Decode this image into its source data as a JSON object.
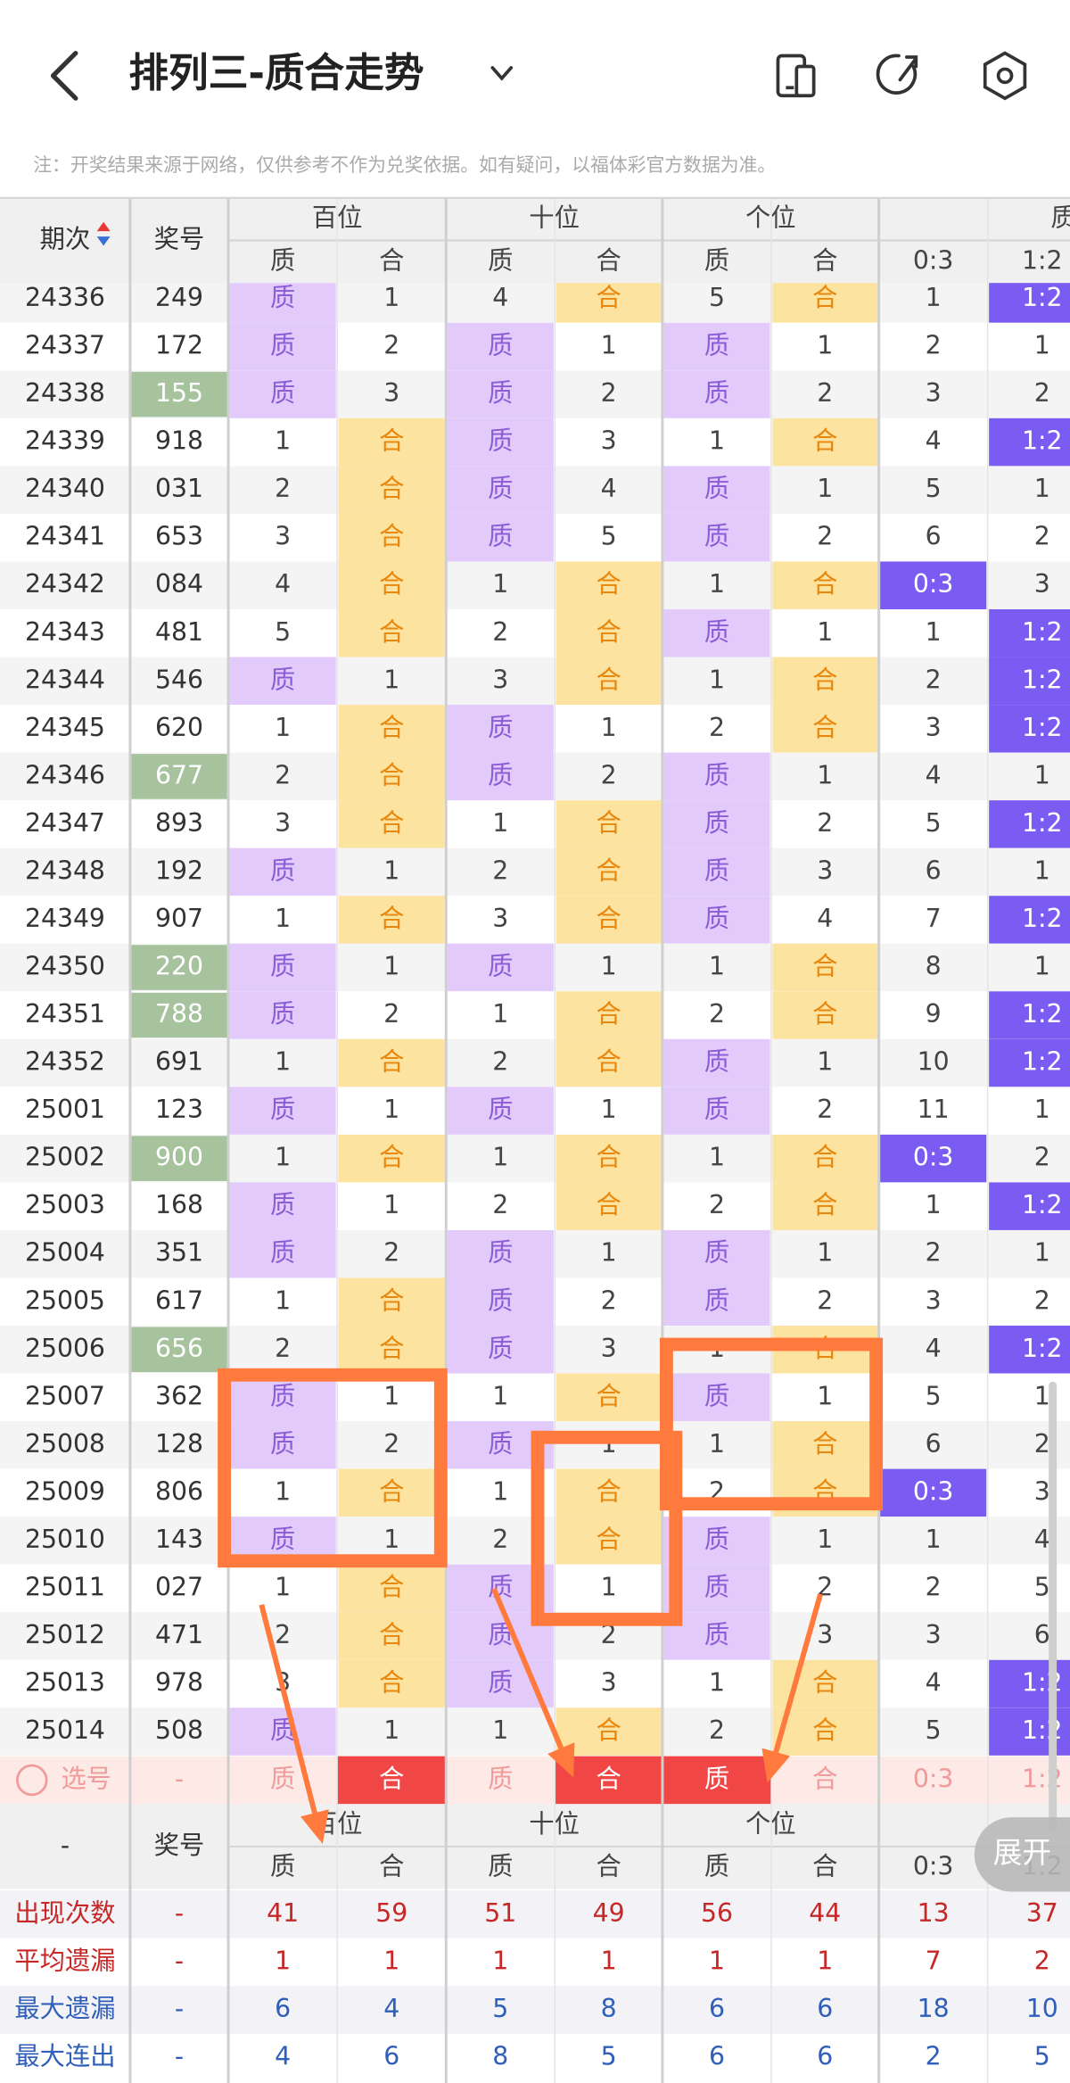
{
  "header": {
    "title": "排列三-质合走势"
  },
  "note": "注：开奖结果来源于网络，仅供参考不作为兑奖依据。如有疑问，以福体彩官方数据为准。",
  "table": {
    "columns": {
      "period": "期次",
      "number": "奖号"
    },
    "groups": [
      "百位",
      "十位",
      "个位",
      "质"
    ],
    "subheaders": [
      "质",
      "合",
      "质",
      "合",
      "质",
      "合",
      "0:3",
      "1:2"
    ],
    "rows": [
      [
        "24336",
        "249",
        "质",
        "1",
        "4",
        "合",
        "5",
        "合",
        "1",
        "1:2"
      ],
      [
        "24337",
        "172",
        "质",
        "2",
        "质",
        "1",
        "质",
        "1",
        "2",
        "1"
      ],
      [
        "24338",
        "155",
        "质",
        "3",
        "质",
        "2",
        "质",
        "2",
        "3",
        "2"
      ],
      [
        "24339",
        "918",
        "1",
        "合",
        "质",
        "3",
        "1",
        "合",
        "4",
        "1:2"
      ],
      [
        "24340",
        "031",
        "2",
        "合",
        "质",
        "4",
        "质",
        "1",
        "5",
        "1"
      ],
      [
        "24341",
        "653",
        "3",
        "合",
        "质",
        "5",
        "质",
        "2",
        "6",
        "2"
      ],
      [
        "24342",
        "084",
        "4",
        "合",
        "1",
        "合",
        "1",
        "合",
        "0:3",
        "3"
      ],
      [
        "24343",
        "481",
        "5",
        "合",
        "2",
        "合",
        "质",
        "1",
        "1",
        "1:2"
      ],
      [
        "24344",
        "546",
        "质",
        "1",
        "3",
        "合",
        "1",
        "合",
        "2",
        "1:2"
      ],
      [
        "24345",
        "620",
        "1",
        "合",
        "质",
        "1",
        "2",
        "合",
        "3",
        "1:2"
      ],
      [
        "24346",
        "677",
        "2",
        "合",
        "质",
        "2",
        "质",
        "1",
        "4",
        "1"
      ],
      [
        "24347",
        "893",
        "3",
        "合",
        "1",
        "合",
        "质",
        "2",
        "5",
        "1:2"
      ],
      [
        "24348",
        "192",
        "质",
        "1",
        "2",
        "合",
        "质",
        "3",
        "6",
        "1"
      ],
      [
        "24349",
        "907",
        "1",
        "合",
        "3",
        "合",
        "质",
        "4",
        "7",
        "1:2"
      ],
      [
        "24350",
        "220",
        "质",
        "1",
        "质",
        "1",
        "1",
        "合",
        "8",
        "1"
      ],
      [
        "24351",
        "788",
        "质",
        "2",
        "1",
        "合",
        "2",
        "合",
        "9",
        "1:2"
      ],
      [
        "24352",
        "691",
        "1",
        "合",
        "2",
        "合",
        "质",
        "1",
        "10",
        "1:2"
      ],
      [
        "25001",
        "123",
        "质",
        "1",
        "质",
        "1",
        "质",
        "2",
        "11",
        "1"
      ],
      [
        "25002",
        "900",
        "1",
        "合",
        "1",
        "合",
        "1",
        "合",
        "0:3",
        "2"
      ],
      [
        "25003",
        "168",
        "质",
        "1",
        "2",
        "合",
        "2",
        "合",
        "1",
        "1:2"
      ],
      [
        "25004",
        "351",
        "质",
        "2",
        "质",
        "1",
        "质",
        "1",
        "2",
        "1"
      ],
      [
        "25005",
        "617",
        "1",
        "合",
        "质",
        "2",
        "质",
        "2",
        "3",
        "2"
      ],
      [
        "25006",
        "656",
        "2",
        "合",
        "质",
        "3",
        "1",
        "合",
        "4",
        "1:2"
      ],
      [
        "25007",
        "362",
        "质",
        "1",
        "1",
        "合",
        "质",
        "1",
        "5",
        "1"
      ],
      [
        "25008",
        "128",
        "质",
        "2",
        "质",
        "1",
        "1",
        "合",
        "6",
        "2"
      ],
      [
        "25009",
        "806",
        "1",
        "合",
        "1",
        "合",
        "2",
        "合",
        "0:3",
        "3"
      ],
      [
        "25010",
        "143",
        "质",
        "1",
        "2",
        "合",
        "质",
        "1",
        "1",
        "4"
      ],
      [
        "25011",
        "027",
        "1",
        "合",
        "质",
        "1",
        "质",
        "2",
        "2",
        "5"
      ],
      [
        "25012",
        "471",
        "2",
        "合",
        "质",
        "2",
        "质",
        "3",
        "3",
        "6"
      ],
      [
        "25013",
        "978",
        "3",
        "合",
        "质",
        "3",
        "1",
        "合",
        "4",
        "1:2"
      ],
      [
        "25014",
        "508",
        "质",
        "1",
        "1",
        "合",
        "2",
        "合",
        "5",
        "1:2"
      ]
    ],
    "select_row": {
      "label": "选号",
      "number": "-",
      "cells": [
        "质",
        "合",
        "质",
        "合",
        "质",
        "合",
        "0:3",
        "1:2"
      ],
      "selected": [
        1,
        3,
        4
      ]
    },
    "footer": {
      "corner": "-",
      "number": "奖号",
      "groups": [
        "百位",
        "十位",
        "个位"
      ],
      "subheaders": [
        "质",
        "合",
        "质",
        "合",
        "质",
        "合",
        "0:3",
        "1:2"
      ],
      "stats": [
        {
          "label": "出现次数",
          "cells": [
            "-",
            "41",
            "59",
            "51",
            "49",
            "56",
            "44",
            "13",
            "37"
          ]
        },
        {
          "label": "平均遗漏",
          "cells": [
            "-",
            "1",
            "1",
            "1",
            "1",
            "1",
            "1",
            "7",
            "2"
          ]
        },
        {
          "label": "最大遗漏",
          "cells": [
            "-",
            "6",
            "4",
            "5",
            "8",
            "6",
            "6",
            "18",
            "10"
          ]
        },
        {
          "label": "最大连出",
          "cells": [
            "-",
            "4",
            "6",
            "8",
            "5",
            "6",
            "6",
            "2",
            "5"
          ]
        }
      ]
    }
  },
  "expand_button": "展开"
}
